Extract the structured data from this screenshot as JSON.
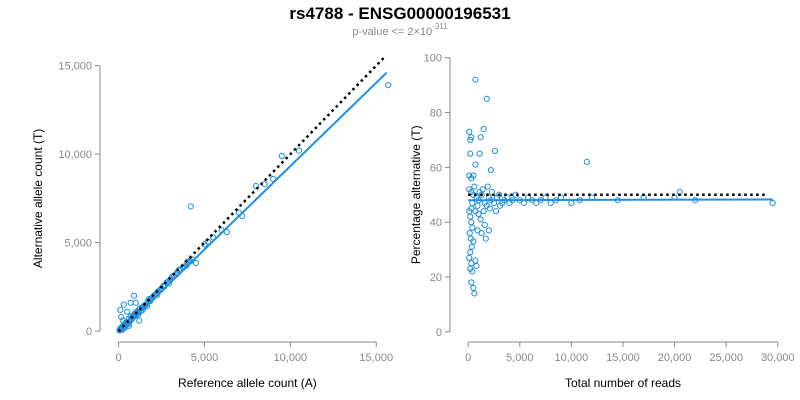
{
  "title": "rs4788 - ENSG00000196531",
  "subtitle": {
    "prefix": "p-value <= 2×10",
    "exponent": "-311"
  },
  "colors": {
    "points": "#1f8fdc",
    "fit": "#1f8fe8",
    "reference": "#000000",
    "axis": "#888888"
  },
  "chart_data": [
    {
      "type": "scatter",
      "xlabel": "Reference allele count (A)",
      "ylabel": "Alternative allele count (T)",
      "xlim": [
        -500,
        15800
      ],
      "ylim": [
        -500,
        15600
      ],
      "xticks": [
        0,
        5000,
        10000,
        15000
      ],
      "xtick_labels": [
        "0",
        "5,000",
        "10,000",
        "15,000"
      ],
      "yticks": [
        0,
        5000,
        10000,
        15000
      ],
      "ytick_labels": [
        "0",
        "5,000",
        "10,000",
        "15,000"
      ],
      "fit_line": [
        [
          0,
          -100
        ],
        [
          15600,
          14600
        ]
      ],
      "reference_line": [
        [
          0,
          0
        ],
        [
          15500,
          15500
        ]
      ],
      "points": [
        [
          50,
          40
        ],
        [
          80,
          120
        ],
        [
          120,
          60
        ],
        [
          150,
          200
        ],
        [
          200,
          150
        ],
        [
          220,
          90
        ],
        [
          260,
          300
        ],
        [
          300,
          250
        ],
        [
          350,
          180
        ],
        [
          380,
          420
        ],
        [
          420,
          350
        ],
        [
          450,
          500
        ],
        [
          500,
          430
        ],
        [
          550,
          380
        ],
        [
          600,
          700
        ],
        [
          620,
          520
        ],
        [
          680,
          600
        ],
        [
          700,
          820
        ],
        [
          750,
          650
        ],
        [
          800,
          760
        ],
        [
          850,
          900
        ],
        [
          900,
          820
        ],
        [
          950,
          1000
        ],
        [
          1000,
          900
        ],
        [
          1100,
          1050
        ],
        [
          1150,
          950
        ],
        [
          1200,
          1250
        ],
        [
          1300,
          1150
        ],
        [
          1350,
          1300
        ],
        [
          1400,
          1200
        ],
        [
          1500,
          1450
        ],
        [
          1600,
          1500
        ],
        [
          1700,
          1650
        ],
        [
          1800,
          1750
        ],
        [
          1900,
          1850
        ],
        [
          2000,
          1900
        ],
        [
          2100,
          2050
        ],
        [
          2200,
          2100
        ],
        [
          2300,
          2250
        ],
        [
          2400,
          2300
        ],
        [
          2500,
          2400
        ],
        [
          2600,
          2550
        ],
        [
          2700,
          2600
        ],
        [
          2800,
          2750
        ],
        [
          2900,
          2800
        ],
        [
          3000,
          2900
        ],
        [
          3100,
          3050
        ],
        [
          3200,
          3100
        ],
        [
          3400,
          3300
        ],
        [
          3500,
          3450
        ],
        [
          3600,
          3500
        ],
        [
          3800,
          3650
        ],
        [
          4000,
          3900
        ],
        [
          4200,
          3950
        ],
        [
          4300,
          4050
        ],
        [
          4500,
          3850
        ],
        [
          4200,
          7050
        ],
        [
          300,
          1500
        ],
        [
          150,
          800
        ],
        [
          700,
          1600
        ],
        [
          500,
          1100
        ],
        [
          900,
          2000
        ],
        [
          1000,
          1600
        ],
        [
          250,
          600
        ],
        [
          600,
          300
        ],
        [
          1200,
          600
        ],
        [
          100,
          1200
        ],
        [
          5000,
          4900
        ],
        [
          5200,
          5050
        ],
        [
          5500,
          5300
        ],
        [
          6000,
          5700
        ],
        [
          6300,
          5600
        ],
        [
          7000,
          6700
        ],
        [
          7200,
          6500
        ],
        [
          8000,
          8200
        ],
        [
          8500,
          8300
        ],
        [
          9000,
          8600
        ],
        [
          9500,
          9900
        ],
        [
          10500,
          10200
        ],
        [
          15700,
          13900
        ],
        [
          1650,
          1400
        ],
        [
          2250,
          2050
        ],
        [
          2950,
          2700
        ],
        [
          3350,
          3200
        ],
        [
          3750,
          3600
        ],
        [
          4100,
          3950
        ],
        [
          1050,
          1100
        ],
        [
          1250,
          1300
        ],
        [
          1450,
          1350
        ],
        [
          1750,
          1800
        ],
        [
          2050,
          2000
        ],
        [
          2650,
          2500
        ],
        [
          3250,
          3150
        ],
        [
          3950,
          3700
        ],
        [
          400,
          300
        ],
        [
          650,
          560
        ],
        [
          850,
          780
        ],
        [
          950,
          880
        ],
        [
          1150,
          1050
        ],
        [
          1550,
          1450
        ],
        [
          1850,
          1700
        ],
        [
          2450,
          2350
        ]
      ]
    },
    {
      "type": "scatter",
      "xlabel": "Total number of reads",
      "ylabel": "Percentage alternative (T)",
      "xlim": [
        -600,
        30700
      ],
      "ylim": [
        -3,
        101
      ],
      "xticks": [
        0,
        5000,
        10000,
        15000,
        20000,
        25000,
        30000
      ],
      "xtick_labels": [
        "0",
        "5,000",
        "10,000",
        "15,000",
        "20,000",
        "25,000",
        "30,000"
      ],
      "yticks": [
        0,
        20,
        40,
        60,
        80,
        100
      ],
      "ytick_labels": [
        "0",
        "20",
        "40",
        "60",
        "80",
        "100"
      ],
      "fit_line": [
        [
          0,
          48
        ],
        [
          29500,
          48.3
        ]
      ],
      "reference_line": [
        [
          0,
          50
        ],
        [
          29000,
          50
        ]
      ],
      "points": [
        [
          700,
          92
        ],
        [
          1800,
          85
        ],
        [
          1500,
          74
        ],
        [
          100,
          73
        ],
        [
          300,
          71
        ],
        [
          200,
          70
        ],
        [
          1200,
          71
        ],
        [
          2600,
          66
        ],
        [
          1100,
          65
        ],
        [
          200,
          65
        ],
        [
          2200,
          59
        ],
        [
          100,
          57
        ],
        [
          500,
          57
        ],
        [
          300,
          56
        ],
        [
          700,
          61
        ],
        [
          11500,
          62
        ],
        [
          100,
          52
        ],
        [
          300,
          51
        ],
        [
          500,
          50
        ],
        [
          800,
          49
        ],
        [
          1000,
          48
        ],
        [
          1300,
          50
        ],
        [
          1600,
          47
        ],
        [
          1800,
          46
        ],
        [
          2000,
          49
        ],
        [
          2200,
          48
        ],
        [
          2500,
          47
        ],
        [
          2800,
          49
        ],
        [
          3000,
          50
        ],
        [
          3300,
          47
        ],
        [
          3500,
          48
        ],
        [
          3800,
          49
        ],
        [
          4000,
          47
        ],
        [
          4300,
          48
        ],
        [
          4600,
          50
        ],
        [
          5000,
          48
        ],
        [
          5400,
          47
        ],
        [
          5800,
          49
        ],
        [
          6200,
          48
        ],
        [
          6600,
          47
        ],
        [
          7000,
          48
        ],
        [
          7500,
          49
        ],
        [
          8000,
          47
        ],
        [
          8500,
          48
        ],
        [
          9000,
          49
        ],
        [
          10000,
          47
        ],
        [
          10800,
          48
        ],
        [
          12000,
          49
        ],
        [
          14500,
          48
        ],
        [
          17000,
          49
        ],
        [
          20000,
          49
        ],
        [
          20500,
          51
        ],
        [
          22000,
          48
        ],
        [
          29500,
          47
        ],
        [
          100,
          44
        ],
        [
          200,
          42
        ],
        [
          300,
          40
        ],
        [
          400,
          38
        ],
        [
          150,
          36
        ],
        [
          250,
          34
        ],
        [
          350,
          31
        ],
        [
          200,
          29
        ],
        [
          100,
          27
        ],
        [
          300,
          25
        ],
        [
          200,
          23
        ],
        [
          400,
          22
        ],
        [
          300,
          18
        ],
        [
          500,
          16
        ],
        [
          600,
          14
        ],
        [
          700,
          26
        ],
        [
          800,
          24
        ],
        [
          500,
          33
        ],
        [
          900,
          37
        ],
        [
          1300,
          36
        ],
        [
          1700,
          34
        ],
        [
          1000,
          43
        ],
        [
          1200,
          41
        ],
        [
          1500,
          44
        ],
        [
          2100,
          45
        ],
        [
          700,
          44
        ],
        [
          900,
          46
        ],
        [
          1100,
          51
        ],
        [
          1400,
          52
        ],
        [
          1900,
          53
        ],
        [
          2300,
          51
        ],
        [
          600,
          53
        ],
        [
          400,
          47
        ],
        [
          300,
          45
        ],
        [
          2700,
          44
        ],
        [
          3100,
          46
        ],
        [
          1600,
          39
        ],
        [
          2000,
          37
        ]
      ]
    }
  ]
}
